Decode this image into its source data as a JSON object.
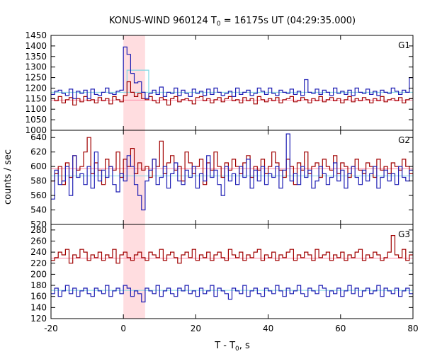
{
  "chart_data": {
    "type": "line",
    "title_main": "KONUS-WIND 960124 T",
    "title_sub": "0",
    "title_rest": " = 16175s UT (04:29:35.000)",
    "xlabel_main": "T - T",
    "xlabel_sub": "0",
    "xlabel_rest": ", s",
    "ylabel": "counts / sec",
    "xlim": [
      -20,
      80
    ],
    "xticks": [
      -20,
      0,
      20,
      40,
      60,
      80
    ],
    "shade": {
      "from": 0,
      "to": 6,
      "color": "#ffdde0"
    },
    "colors": {
      "blue": "#1f1fb4",
      "red": "#a00000",
      "cyan": "#7fd7e3",
      "pink": "#ff8aa6"
    },
    "step": 1,
    "panels": [
      {
        "label": "G1",
        "ylim": [
          1000,
          1450
        ],
        "yticks": [
          1000,
          1050,
          1100,
          1150,
          1200,
          1250,
          1300,
          1350,
          1400,
          1450
        ],
        "x_start": -20,
        "blue": [
          1170,
          1185,
          1190,
          1175,
          1165,
          1195,
          1150,
          1185,
          1175,
          1190,
          1150,
          1195,
          1170,
          1165,
          1180,
          1200,
          1175,
          1170,
          1185,
          1190,
          1395,
          1360,
          1270,
          1225,
          1230,
          1180,
          1150,
          1175,
          1190,
          1170,
          1205,
          1160,
          1180,
          1175,
          1200,
          1165,
          1190,
          1175,
          1160,
          1195,
          1175,
          1185,
          1165,
          1195,
          1170,
          1200,
          1180,
          1165,
          1175,
          1185,
          1160,
          1200,
          1170,
          1180,
          1190,
          1165,
          1175,
          1200,
          1185,
          1170,
          1200,
          1175,
          1165,
          1190,
          1180,
          1175,
          1195,
          1170,
          1185,
          1165,
          1240,
          1180,
          1175,
          1195,
          1170,
          1190,
          1180,
          1165,
          1200,
          1175,
          1185,
          1170,
          1190,
          1165,
          1200,
          1180,
          1175,
          1195,
          1170,
          1185,
          1165,
          1190,
          1180,
          1175,
          1200,
          1185,
          1170,
          1190,
          1180,
          1250
        ],
        "red": [
          1150,
          1140,
          1160,
          1130,
          1145,
          1155,
          1120,
          1150,
          1135,
          1160,
          1140,
          1145,
          1130,
          1155,
          1140,
          1150,
          1125,
          1160,
          1145,
          1135,
          1165,
          1230,
          1180,
          1160,
          1175,
          1150,
          1145,
          1160,
          1140,
          1130,
          1155,
          1145,
          1120,
          1150,
          1160,
          1135,
          1145,
          1150,
          1140,
          1125,
          1155,
          1160,
          1140,
          1150,
          1130,
          1145,
          1155,
          1135,
          1150,
          1160,
          1140,
          1145,
          1130,
          1155,
          1140,
          1150,
          1125,
          1160,
          1145,
          1135,
          1150,
          1140,
          1155,
          1130,
          1145,
          1150,
          1160,
          1135,
          1140,
          1155,
          1145,
          1130,
          1150,
          1140,
          1160,
          1135,
          1145,
          1155,
          1140,
          1150,
          1130,
          1145,
          1160,
          1135,
          1150,
          1140,
          1155,
          1145,
          1130,
          1150,
          1140,
          1160,
          1135,
          1145,
          1150,
          1140,
          1155,
          1130,
          1145,
          1150
        ],
        "bg_blue": 1180,
        "bg_red": 1143,
        "burst_level": {
          "from": 1,
          "to": 7,
          "value": 1285
        }
      },
      {
        "label": "G2",
        "ylim": [
          520,
          650
        ],
        "yticks": [
          520,
          540,
          560,
          580,
          600,
          620,
          640
        ],
        "x_start": -20,
        "blue": [
          555,
          595,
          575,
          580,
          600,
          560,
          615,
          585,
          590,
          575,
          600,
          570,
          620,
          580,
          595,
          585,
          600,
          575,
          565,
          590,
          580,
          615,
          600,
          575,
          560,
          540,
          580,
          595,
          610,
          575,
          585,
          600,
          570,
          590,
          605,
          580,
          575,
          595,
          585,
          600,
          570,
          590,
          580,
          615,
          585,
          595,
          575,
          560,
          600,
          580,
          590,
          575,
          600,
          585,
          610,
          570,
          595,
          580,
          600,
          575,
          590,
          585,
          600,
          570,
          595,
          645,
          580,
          590,
          575,
          600,
          585,
          595,
          570,
          580,
          600,
          590,
          575,
          585,
          605,
          580,
          595,
          570,
          590,
          600,
          585,
          575,
          595,
          580,
          590,
          600,
          570,
          585,
          595,
          580,
          590,
          575,
          600,
          585,
          580,
          595
        ],
        "red": [
          580,
          590,
          600,
          575,
          605,
          585,
          615,
          595,
          600,
          620,
          640,
          590,
          605,
          595,
          575,
          610,
          600,
          595,
          620,
          585,
          610,
          600,
          625,
          590,
          605,
          595,
          600,
          585,
          610,
          600,
          635,
          590,
          605,
          615,
          595,
          600,
          580,
          620,
          605,
          590,
          600,
          610,
          575,
          605,
          595,
          620,
          600,
          585,
          605,
          595,
          610,
          600,
          590,
          605,
          615,
          585,
          600,
          595,
          610,
          590,
          600,
          620,
          605,
          595,
          585,
          610,
          600,
          575,
          605,
          595,
          620,
          590,
          600,
          605,
          585,
          610,
          600,
          595,
          615,
          590,
          605,
          600,
          585,
          600,
          610,
          595,
          590,
          605,
          600,
          585,
          610,
          595,
          600,
          590,
          605,
          600,
          595,
          610,
          600,
          590
        ],
        "bg_blue": 587,
        "bg_red": 597
      },
      {
        "label": "G3",
        "ylim": [
          120,
          290
        ],
        "yticks": [
          120,
          140,
          160,
          180,
          200,
          220,
          240,
          260,
          280
        ],
        "x_start": -20,
        "blue": [
          165,
          175,
          160,
          170,
          180,
          165,
          175,
          160,
          170,
          175,
          165,
          160,
          175,
          170,
          165,
          180,
          160,
          170,
          175,
          165,
          180,
          175,
          160,
          170,
          165,
          150,
          175,
          170,
          165,
          180,
          160,
          170,
          175,
          165,
          160,
          175,
          170,
          180,
          165,
          170,
          160,
          175,
          165,
          170,
          180,
          160,
          175,
          170,
          165,
          155,
          175,
          170,
          165,
          180,
          160,
          170,
          175,
          165,
          160,
          175,
          170,
          165,
          180,
          170,
          160,
          175,
          165,
          170,
          180,
          165,
          160,
          175,
          170,
          165,
          180,
          175,
          160,
          170,
          165,
          175,
          160,
          170,
          180,
          165,
          175,
          160,
          170,
          175,
          165,
          170,
          180,
          160,
          175,
          170,
          165,
          175,
          160,
          170,
          175,
          165
        ],
        "red": [
          225,
          230,
          240,
          235,
          245,
          220,
          235,
          230,
          245,
          240,
          225,
          235,
          230,
          240,
          225,
          235,
          230,
          245,
          220,
          235,
          240,
          230,
          225,
          235,
          240,
          230,
          225,
          240,
          235,
          230,
          245,
          225,
          235,
          240,
          230,
          220,
          235,
          240,
          230,
          245,
          225,
          235,
          230,
          240,
          225,
          235,
          240,
          230,
          225,
          245,
          235,
          230,
          240,
          225,
          235,
          230,
          240,
          245,
          225,
          235,
          230,
          240,
          225,
          235,
          230,
          240,
          245,
          225,
          235,
          230,
          240,
          235,
          225,
          245,
          230,
          235,
          240,
          225,
          235,
          230,
          240,
          225,
          235,
          230,
          240,
          245,
          225,
          235,
          230,
          240,
          235,
          225,
          230,
          240,
          270,
          235,
          230,
          245,
          225,
          235
        ],
        "bg_blue": 171,
        "bg_red": 229
      }
    ]
  }
}
